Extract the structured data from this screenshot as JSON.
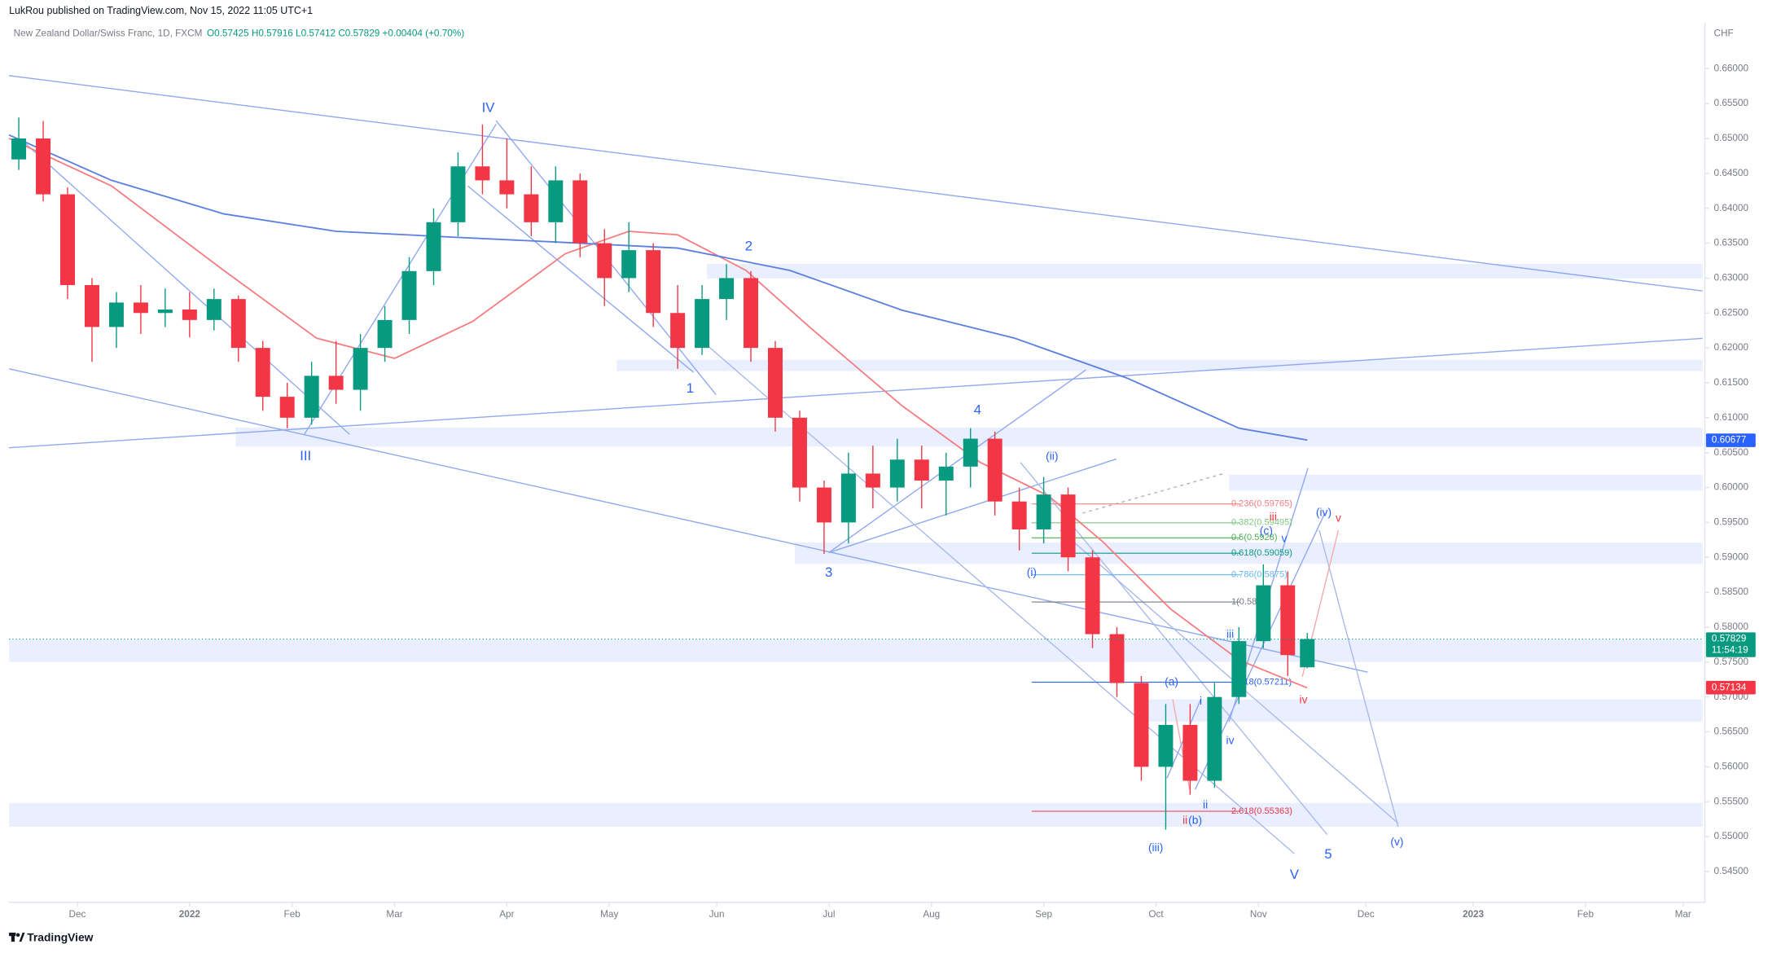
{
  "chart_data": {
    "type": "candlestick",
    "header": "LukRou published on TradingView.com, Nov 15, 2022 11:05 UTC+1",
    "title": "New Zealand Dollar/Swiss Franc, 1D, FXCM",
    "ohlc_text": "O0.57425 H0.57916 L0.57412 C0.57829 +0.00404 (+0.70%)",
    "unit": "CHF",
    "brand": "TradingView",
    "up_color": "#089981",
    "down_color": "#f23645",
    "grid": false,
    "xlim": [
      0,
      347
    ],
    "xticks": [
      {
        "value": 14,
        "label": "Dec"
      },
      {
        "value": 37,
        "label": "2022"
      },
      {
        "value": 58,
        "label": "Feb"
      },
      {
        "value": 79,
        "label": "Mar"
      },
      {
        "value": 102,
        "label": "Apr"
      },
      {
        "value": 123,
        "label": "May"
      },
      {
        "value": 145,
        "label": "Jun"
      },
      {
        "value": 168,
        "label": "Jul"
      },
      {
        "value": 189,
        "label": "Aug"
      },
      {
        "value": 212,
        "label": "Sep"
      },
      {
        "value": 235,
        "label": "Oct"
      },
      {
        "value": 256,
        "label": "Nov"
      },
      {
        "value": 278,
        "label": "Dec"
      },
      {
        "value": 300,
        "label": "2023"
      },
      {
        "value": 323,
        "label": "Feb"
      },
      {
        "value": 343,
        "label": "Mar"
      }
    ],
    "ylim": [
      0.5406,
      0.6666
    ],
    "yticks": [
      {
        "value": 0.545,
        "label": "0.54500"
      },
      {
        "value": 0.55,
        "label": "0.55000"
      },
      {
        "value": 0.555,
        "label": "0.55500"
      },
      {
        "value": 0.56,
        "label": "0.56000"
      },
      {
        "value": 0.565,
        "label": "0.56500"
      },
      {
        "value": 0.57,
        "label": "0.57000"
      },
      {
        "value": 0.575,
        "label": "0.57500"
      },
      {
        "value": 0.58,
        "label": "0.58000"
      },
      {
        "value": 0.585,
        "label": "0.58500"
      },
      {
        "value": 0.59,
        "label": "0.59000"
      },
      {
        "value": 0.595,
        "label": "0.59500"
      },
      {
        "value": 0.6,
        "label": "0.60000"
      },
      {
        "value": 0.605,
        "label": "0.60500"
      },
      {
        "value": 0.61,
        "label": "0.61000"
      },
      {
        "value": 0.615,
        "label": "0.61500"
      },
      {
        "value": 0.62,
        "label": "0.62000"
      },
      {
        "value": 0.625,
        "label": "0.62500"
      },
      {
        "value": 0.63,
        "label": "0.63000"
      },
      {
        "value": 0.635,
        "label": "0.63500"
      },
      {
        "value": 0.64,
        "label": "0.64000"
      },
      {
        "value": 0.645,
        "label": "0.64500"
      },
      {
        "value": 0.65,
        "label": "0.65000"
      },
      {
        "value": 0.655,
        "label": "0.65500"
      },
      {
        "value": 0.66,
        "label": "0.66000"
      }
    ],
    "x": [
      2,
      7,
      12,
      17,
      22,
      27,
      32,
      37,
      42,
      47,
      52,
      57,
      62,
      67,
      72,
      77,
      82,
      87,
      92,
      97,
      102,
      107,
      112,
      117,
      122,
      127,
      132,
      137,
      142,
      147,
      152,
      157,
      162,
      167,
      172,
      177,
      182,
      187,
      192,
      197,
      202,
      207,
      212,
      217,
      222,
      227,
      232,
      237,
      242,
      247,
      252,
      257,
      262,
      266
    ],
    "open": [
      0.647,
      0.65,
      0.642,
      0.629,
      0.623,
      0.6265,
      0.625,
      0.6255,
      0.624,
      0.627,
      0.62,
      0.613,
      0.61,
      0.616,
      0.614,
      0.62,
      0.624,
      0.631,
      0.638,
      0.646,
      0.644,
      0.642,
      0.638,
      0.644,
      0.635,
      0.63,
      0.634,
      0.625,
      0.62,
      0.627,
      0.63,
      0.62,
      0.61,
      0.6,
      0.595,
      0.602,
      0.6,
      0.604,
      0.601,
      0.603,
      0.607,
      0.598,
      0.594,
      0.599,
      0.59,
      0.579,
      0.572,
      0.56,
      0.566,
      0.558,
      0.57,
      0.578,
      0.586,
      0.57425
    ],
    "high": [
      0.653,
      0.6525,
      0.643,
      0.63,
      0.628,
      0.629,
      0.6285,
      0.628,
      0.6285,
      0.6275,
      0.621,
      0.615,
      0.618,
      0.621,
      0.622,
      0.626,
      0.633,
      0.64,
      0.648,
      0.652,
      0.65,
      0.646,
      0.646,
      0.645,
      0.637,
      0.638,
      0.635,
      0.629,
      0.629,
      0.632,
      0.631,
      0.621,
      0.611,
      0.601,
      0.605,
      0.606,
      0.607,
      0.606,
      0.605,
      0.6085,
      0.608,
      0.6,
      0.6015,
      0.6,
      0.591,
      0.58,
      0.573,
      0.569,
      0.569,
      0.572,
      0.58,
      0.589,
      0.588,
      0.57916
    ],
    "low": [
      0.6455,
      0.641,
      0.627,
      0.618,
      0.62,
      0.622,
      0.623,
      0.6215,
      0.6225,
      0.618,
      0.611,
      0.6085,
      0.609,
      0.612,
      0.611,
      0.618,
      0.622,
      0.629,
      0.636,
      0.642,
      0.64,
      0.636,
      0.635,
      0.633,
      0.626,
      0.628,
      0.623,
      0.617,
      0.619,
      0.624,
      0.618,
      0.608,
      0.598,
      0.5905,
      0.592,
      0.597,
      0.598,
      0.597,
      0.596,
      0.6,
      0.596,
      0.591,
      0.592,
      0.588,
      0.577,
      0.57,
      0.558,
      0.551,
      0.556,
      0.557,
      0.569,
      0.577,
      0.573,
      0.57412
    ],
    "close": [
      0.65,
      0.642,
      0.629,
      0.623,
      0.6265,
      0.625,
      0.6255,
      0.624,
      0.627,
      0.62,
      0.613,
      0.61,
      0.616,
      0.614,
      0.62,
      0.624,
      0.631,
      0.638,
      0.646,
      0.644,
      0.642,
      0.638,
      0.644,
      0.635,
      0.63,
      0.634,
      0.625,
      0.62,
      0.627,
      0.63,
      0.62,
      0.61,
      0.6,
      0.595,
      0.602,
      0.6,
      0.604,
      0.601,
      0.603,
      0.607,
      0.598,
      0.594,
      0.599,
      0.59,
      0.579,
      0.572,
      0.56,
      0.566,
      0.558,
      0.57,
      0.578,
      0.586,
      0.576,
      0.57829
    ],
    "series": [
      {
        "color": "#f77c80",
        "x": [
          0,
          21,
          44,
          63,
          79,
          95,
          114,
          127,
          137,
          151,
          164,
          183,
          199,
          213,
          224,
          238,
          252,
          266
        ],
        "values": [
          0.65,
          0.6432,
          0.6311,
          0.6214,
          0.6185,
          0.6238,
          0.6335,
          0.6367,
          0.6362,
          0.6311,
          0.623,
          0.6117,
          0.6036,
          0.5988,
          0.5923,
          0.5826,
          0.5753,
          0.5713
        ]
      },
      {
        "color": "#5b7fe0",
        "x": [
          0,
          21,
          44,
          67,
          90,
          114,
          137,
          160,
          183,
          206,
          229,
          252,
          266
        ],
        "values": [
          0.6505,
          0.644,
          0.6392,
          0.6367,
          0.6359,
          0.6351,
          0.6343,
          0.6311,
          0.6254,
          0.6214,
          0.6157,
          0.6085,
          0.6068
        ]
      }
    ],
    "price_tags": [
      {
        "value": 0.60677,
        "label": "0.60677",
        "color": "#2962ff"
      },
      {
        "value": 0.57829,
        "label": "0.57829",
        "sublabel": "11:54:19",
        "color": "#089981"
      },
      {
        "value": 0.57134,
        "label": "0.57134",
        "color": "#f23645"
      }
    ],
    "fib_levels": [
      {
        "value": 0.59765,
        "label": "0.236(0.59765)",
        "color": "#f77c80"
      },
      {
        "value": 0.59495,
        "label": "0.382(0.59495)",
        "color": "#81c784"
      },
      {
        "value": 0.5928,
        "label": "0.5(0.5928)",
        "color": "#4caf50"
      },
      {
        "value": 0.59059,
        "label": "0.618(0.59059)",
        "color": "#089981"
      },
      {
        "value": 0.5875,
        "label": "0.786(0.5875)",
        "color": "#64b5f6"
      },
      {
        "value": 0.5836,
        "label": "1(0.5836)",
        "color": "#787b86"
      },
      {
        "value": 0.57211,
        "label": "1.618(0.57211)",
        "color": "#2962ff"
      },
      {
        "value": 0.55363,
        "label": "2.618(0.55363)",
        "color": "#f23645"
      }
    ],
    "waves": [
      {
        "label": "IV",
        "color": "#2962ff"
      },
      {
        "label": "III",
        "color": "#2962ff"
      },
      {
        "label": "2",
        "color": "#2962ff"
      },
      {
        "label": "1",
        "color": "#2962ff"
      },
      {
        "label": "3",
        "color": "#2962ff"
      },
      {
        "label": "4",
        "color": "#2962ff"
      },
      {
        "label": "(ii)",
        "color": "#2962ff"
      },
      {
        "label": "(i)",
        "color": "#2962ff"
      },
      {
        "label": "(iii)",
        "color": "#2962ff"
      },
      {
        "label": "(a)",
        "color": "#2962ff"
      },
      {
        "label": "(b)",
        "color": "#2962ff"
      },
      {
        "label": "ii",
        "color": "#f23645"
      },
      {
        "label": "(c)",
        "color": "#2962ff"
      },
      {
        "label": "iii",
        "color": "#f23645"
      },
      {
        "label": "v",
        "color": "#2962ff"
      },
      {
        "label": "(iv)",
        "color": "#2962ff"
      },
      {
        "label": "v",
        "color": "#f23645"
      },
      {
        "label": "iv",
        "color": "#f23645"
      },
      {
        "label": "iii",
        "color": "#2962ff"
      },
      {
        "label": "i",
        "color": "#2962ff"
      },
      {
        "label": "iv",
        "color": "#2962ff"
      },
      {
        "label": "ii",
        "color": "#2962ff"
      },
      {
        "label": "5",
        "color": "#2962ff"
      },
      {
        "label": "V",
        "color": "#2962ff"
      },
      {
        "label": "(v)",
        "color": "#2962ff"
      }
    ]
  }
}
